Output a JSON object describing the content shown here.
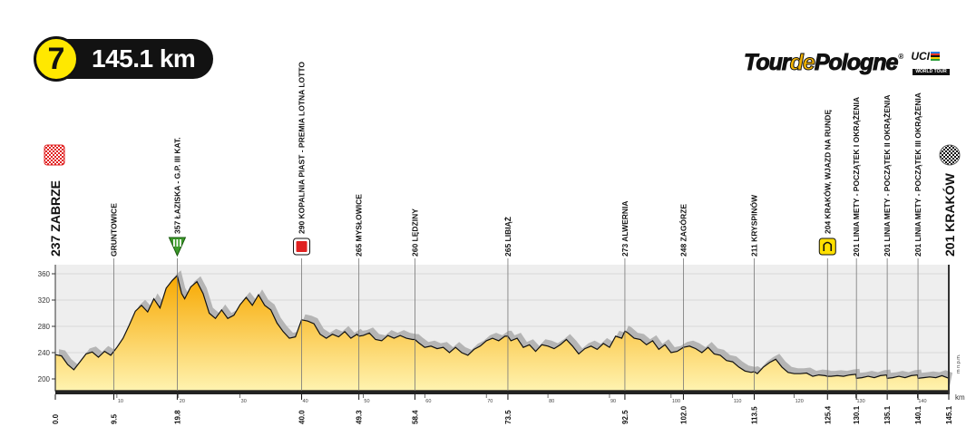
{
  "stage": {
    "number": "7",
    "distance": "145.1 km"
  },
  "logo": {
    "tour_left": "Tour",
    "tour_mid": "de",
    "tour_right": "Pologne",
    "reg": "®",
    "uci": "UCI",
    "world_tour": "WORLD TOUR"
  },
  "start": {
    "altitude": "237",
    "name": "ZABRZE"
  },
  "finish": {
    "altitude": "201",
    "name": "KRAKÓW"
  },
  "chart_data": {
    "type": "area",
    "xlabel": "km",
    "ylabel": "m n.p.m.",
    "xlim": [
      0,
      145.1
    ],
    "ylim": [
      180,
      370
    ],
    "y_ticks": [
      200,
      240,
      280,
      320,
      360
    ],
    "x_minor_ticks": [
      10,
      20,
      30,
      40,
      50,
      60,
      70,
      80,
      90,
      100,
      110,
      120,
      130,
      140
    ],
    "x_major_ticks": [
      "0.0",
      "9.5",
      "19.8",
      "40.0",
      "49.3",
      "58.4",
      "73.5",
      "92.5",
      "102.0",
      "113.5",
      "125.4",
      "130.1",
      "135.1",
      "140.1",
      "145.1"
    ],
    "waypoints": [
      {
        "km": 9.5,
        "label": "GRUNTOWICE",
        "marker": "none"
      },
      {
        "km": 19.8,
        "label": "357 ŁAZISKA - G.P. III KAT.",
        "marker": "kom"
      },
      {
        "km": 40.0,
        "label": "290 KOPALNIA PIAST - PREMIA LOTNA LOTTO",
        "marker": "sprint"
      },
      {
        "km": 49.3,
        "label": "265 MYSŁOWICE",
        "marker": "none"
      },
      {
        "km": 58.4,
        "label": "260 LĘDZINY",
        "marker": "none"
      },
      {
        "km": 73.5,
        "label": "265 LIBIĄŻ",
        "marker": "none"
      },
      {
        "km": 92.5,
        "label": "273 ALWERNIA",
        "marker": "none"
      },
      {
        "km": 102.0,
        "label": "248 ZAGÓRZE",
        "marker": "none"
      },
      {
        "km": 113.5,
        "label": "211 KRYSPINÓW",
        "marker": "none"
      },
      {
        "km": 125.4,
        "label": "204 KRAKÓW, WJAZD NA RUNDĘ",
        "marker": "circuit"
      },
      {
        "km": 130.1,
        "label": "201 LINIA METY - POCZĄTEK I OKRĄŻENIA",
        "marker": "none"
      },
      {
        "km": 135.1,
        "label": "201 LINIA METY - POCZĄTEK II OKRĄŻENIA",
        "marker": "none"
      },
      {
        "km": 140.1,
        "label": "201 LINIA METY - POCZĄTEK III OKRĄŻENIA",
        "marker": "none"
      }
    ],
    "profile": [
      [
        0,
        237
      ],
      [
        1,
        235
      ],
      [
        2,
        222
      ],
      [
        3,
        214
      ],
      [
        4,
        226
      ],
      [
        5,
        238
      ],
      [
        6,
        241
      ],
      [
        7,
        233
      ],
      [
        8,
        242
      ],
      [
        9,
        236
      ],
      [
        10,
        248
      ],
      [
        11,
        262
      ],
      [
        12,
        282
      ],
      [
        13,
        303
      ],
      [
        14,
        312
      ],
      [
        15,
        302
      ],
      [
        16,
        322
      ],
      [
        17,
        308
      ],
      [
        18,
        338
      ],
      [
        19,
        350
      ],
      [
        19.8,
        357
      ],
      [
        20.5,
        330
      ],
      [
        21,
        322
      ],
      [
        22,
        340
      ],
      [
        23,
        348
      ],
      [
        24,
        330
      ],
      [
        25,
        300
      ],
      [
        26,
        292
      ],
      [
        27,
        305
      ],
      [
        28,
        292
      ],
      [
        29,
        297
      ],
      [
        30,
        313
      ],
      [
        31,
        324
      ],
      [
        32,
        312
      ],
      [
        33,
        328
      ],
      [
        34,
        312
      ],
      [
        35,
        305
      ],
      [
        36,
        285
      ],
      [
        37,
        272
      ],
      [
        38,
        262
      ],
      [
        39,
        264
      ],
      [
        40,
        290
      ],
      [
        41,
        288
      ],
      [
        42,
        284
      ],
      [
        43,
        268
      ],
      [
        44,
        262
      ],
      [
        45,
        268
      ],
      [
        46,
        264
      ],
      [
        47,
        272
      ],
      [
        48,
        262
      ],
      [
        49,
        268
      ],
      [
        49.3,
        265
      ],
      [
        50,
        266
      ],
      [
        51,
        270
      ],
      [
        52,
        260
      ],
      [
        53,
        258
      ],
      [
        54,
        266
      ],
      [
        55,
        262
      ],
      [
        56,
        266
      ],
      [
        57,
        262
      ],
      [
        58,
        260
      ],
      [
        58.4,
        260
      ],
      [
        59,
        255
      ],
      [
        60,
        248
      ],
      [
        61,
        250
      ],
      [
        62,
        246
      ],
      [
        63,
        248
      ],
      [
        64,
        240
      ],
      [
        65,
        248
      ],
      [
        66,
        240
      ],
      [
        67,
        236
      ],
      [
        68,
        245
      ],
      [
        69,
        250
      ],
      [
        70,
        258
      ],
      [
        71,
        262
      ],
      [
        72,
        258
      ],
      [
        73,
        265
      ],
      [
        73.5,
        265
      ],
      [
        74,
        258
      ],
      [
        75,
        262
      ],
      [
        76,
        248
      ],
      [
        77,
        252
      ],
      [
        78,
        242
      ],
      [
        79,
        252
      ],
      [
        80,
        250
      ],
      [
        81,
        246
      ],
      [
        82,
        252
      ],
      [
        83,
        260
      ],
      [
        84,
        250
      ],
      [
        85,
        238
      ],
      [
        86,
        246
      ],
      [
        87,
        250
      ],
      [
        88,
        245
      ],
      [
        89,
        254
      ],
      [
        90,
        248
      ],
      [
        91,
        265
      ],
      [
        92,
        262
      ],
      [
        92.5,
        273
      ],
      [
        93,
        270
      ],
      [
        94,
        262
      ],
      [
        95,
        260
      ],
      [
        96,
        252
      ],
      [
        97,
        258
      ],
      [
        98,
        245
      ],
      [
        99,
        252
      ],
      [
        100,
        240
      ],
      [
        101,
        242
      ],
      [
        102,
        248
      ],
      [
        103,
        250
      ],
      [
        104,
        246
      ],
      [
        105,
        240
      ],
      [
        106,
        248
      ],
      [
        107,
        238
      ],
      [
        108,
        236
      ],
      [
        109,
        228
      ],
      [
        110,
        226
      ],
      [
        111,
        218
      ],
      [
        112,
        212
      ],
      [
        113,
        210
      ],
      [
        113.5,
        211
      ],
      [
        114,
        208
      ],
      [
        115,
        218
      ],
      [
        116,
        225
      ],
      [
        117,
        230
      ],
      [
        118,
        218
      ],
      [
        119,
        210
      ],
      [
        120,
        208
      ],
      [
        121,
        208
      ],
      [
        122,
        209
      ],
      [
        123,
        204
      ],
      [
        124,
        206
      ],
      [
        125,
        205
      ],
      [
        125.4,
        204
      ],
      [
        126,
        204
      ],
      [
        127,
        205
      ],
      [
        128,
        204
      ],
      [
        129,
        206
      ],
      [
        130,
        207
      ],
      [
        130.1,
        201
      ],
      [
        131,
        202
      ],
      [
        132,
        204
      ],
      [
        133,
        202
      ],
      [
        134,
        205
      ],
      [
        135,
        206
      ],
      [
        135.1,
        201
      ],
      [
        136,
        202
      ],
      [
        137,
        204
      ],
      [
        138,
        202
      ],
      [
        139,
        205
      ],
      [
        140,
        206
      ],
      [
        140.1,
        201
      ],
      [
        141,
        202
      ],
      [
        142,
        203
      ],
      [
        143,
        202
      ],
      [
        144,
        205
      ],
      [
        145.1,
        201
      ]
    ]
  }
}
